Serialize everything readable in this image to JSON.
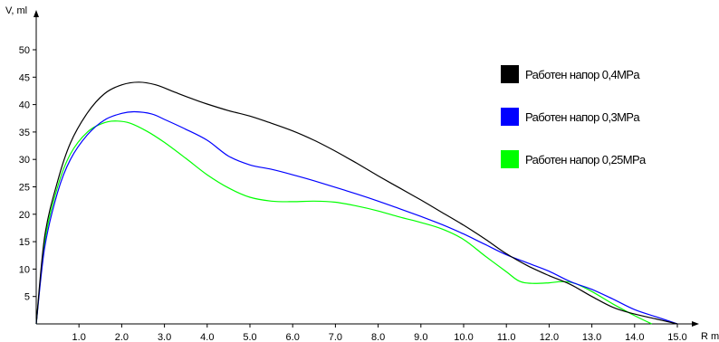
{
  "chart_data": {
    "type": "line",
    "ylabel": "V, ml",
    "xlabel": "R m",
    "xlim": [
      0,
      15.4
    ],
    "ylim": [
      0,
      55
    ],
    "xticks": [
      "1.0",
      "2.0",
      "3.0",
      "4.0",
      "5.0",
      "6.0",
      "7.0",
      "8.0",
      "9.0",
      "10.0",
      "11.0",
      "12.0",
      "13.0",
      "14.0",
      "15.0"
    ],
    "yticks": [
      "5",
      "10",
      "15",
      "20",
      "25",
      "30",
      "35",
      "40",
      "45",
      "50"
    ],
    "grid": false,
    "legend_position": "right",
    "series": [
      {
        "name": "Работен напор 0,4MPa",
        "color": "#000000",
        "points": [
          [
            0,
            0
          ],
          [
            0.2,
            16
          ],
          [
            0.5,
            26
          ],
          [
            0.8,
            33
          ],
          [
            1.2,
            38.5
          ],
          [
            1.6,
            42
          ],
          [
            2.0,
            43.6
          ],
          [
            2.4,
            44.1
          ],
          [
            2.8,
            43.6
          ],
          [
            3.2,
            42.4
          ],
          [
            3.6,
            41.2
          ],
          [
            4.0,
            40.1
          ],
          [
            4.5,
            38.9
          ],
          [
            5.0,
            37.9
          ],
          [
            5.5,
            36.6
          ],
          [
            6.0,
            35.2
          ],
          [
            6.5,
            33.5
          ],
          [
            7.0,
            31.5
          ],
          [
            7.5,
            29.3
          ],
          [
            8.0,
            27.0
          ],
          [
            8.5,
            24.8
          ],
          [
            9.0,
            22.6
          ],
          [
            9.5,
            20.3
          ],
          [
            10.0,
            18.0
          ],
          [
            10.5,
            15.5
          ],
          [
            11.0,
            12.8
          ],
          [
            11.5,
            10.6
          ],
          [
            12.0,
            8.8
          ],
          [
            12.5,
            7.2
          ],
          [
            13.0,
            5.0
          ],
          [
            13.5,
            3.0
          ],
          [
            14.0,
            1.8
          ],
          [
            14.5,
            0.9
          ],
          [
            15.0,
            0.0
          ]
        ]
      },
      {
        "name": "Работен напор 0,3MPa",
        "color": "#0000ff",
        "points": [
          [
            0,
            0
          ],
          [
            0.2,
            14
          ],
          [
            0.5,
            24
          ],
          [
            0.8,
            30
          ],
          [
            1.2,
            34.5
          ],
          [
            1.6,
            37.2
          ],
          [
            2.0,
            38.4
          ],
          [
            2.3,
            38.7
          ],
          [
            2.7,
            38.3
          ],
          [
            3.0,
            37.3
          ],
          [
            3.5,
            35.5
          ],
          [
            4.0,
            33.5
          ],
          [
            4.5,
            30.6
          ],
          [
            5.0,
            29.0
          ],
          [
            5.5,
            28.2
          ],
          [
            6.0,
            27.2
          ],
          [
            6.5,
            26.1
          ],
          [
            7.0,
            24.9
          ],
          [
            7.5,
            23.7
          ],
          [
            8.0,
            22.4
          ],
          [
            8.5,
            21.0
          ],
          [
            9.0,
            19.6
          ],
          [
            9.5,
            18.1
          ],
          [
            10.0,
            16.4
          ],
          [
            10.5,
            14.5
          ],
          [
            11.0,
            12.6
          ],
          [
            11.5,
            11.1
          ],
          [
            12.0,
            9.6
          ],
          [
            12.5,
            7.7
          ],
          [
            13.0,
            6.3
          ],
          [
            13.5,
            4.5
          ],
          [
            14.0,
            2.6
          ],
          [
            14.5,
            1.3
          ],
          [
            15.0,
            0.0
          ]
        ]
      },
      {
        "name": "Работен напор 0,25MPa",
        "color": "#00ff00",
        "points": [
          [
            0,
            0
          ],
          [
            0.2,
            15
          ],
          [
            0.5,
            25
          ],
          [
            0.8,
            31
          ],
          [
            1.2,
            35
          ],
          [
            1.6,
            36.7
          ],
          [
            1.9,
            37.0
          ],
          [
            2.2,
            36.6
          ],
          [
            2.6,
            35.1
          ],
          [
            3.0,
            33.1
          ],
          [
            3.5,
            30.2
          ],
          [
            4.0,
            27.2
          ],
          [
            4.5,
            24.8
          ],
          [
            5.0,
            23.1
          ],
          [
            5.5,
            22.4
          ],
          [
            6.0,
            22.3
          ],
          [
            6.5,
            22.4
          ],
          [
            7.0,
            22.2
          ],
          [
            7.5,
            21.5
          ],
          [
            8.0,
            20.6
          ],
          [
            8.5,
            19.5
          ],
          [
            9.0,
            18.5
          ],
          [
            9.5,
            17.3
          ],
          [
            10.0,
            15.4
          ],
          [
            10.5,
            12.4
          ],
          [
            11.0,
            9.5
          ],
          [
            11.3,
            7.8
          ],
          [
            11.6,
            7.4
          ],
          [
            12.0,
            7.5
          ],
          [
            12.3,
            7.7
          ],
          [
            12.6,
            7.4
          ],
          [
            13.0,
            5.9
          ],
          [
            13.5,
            3.6
          ],
          [
            14.0,
            1.5
          ],
          [
            14.4,
            0.0
          ]
        ]
      }
    ]
  }
}
